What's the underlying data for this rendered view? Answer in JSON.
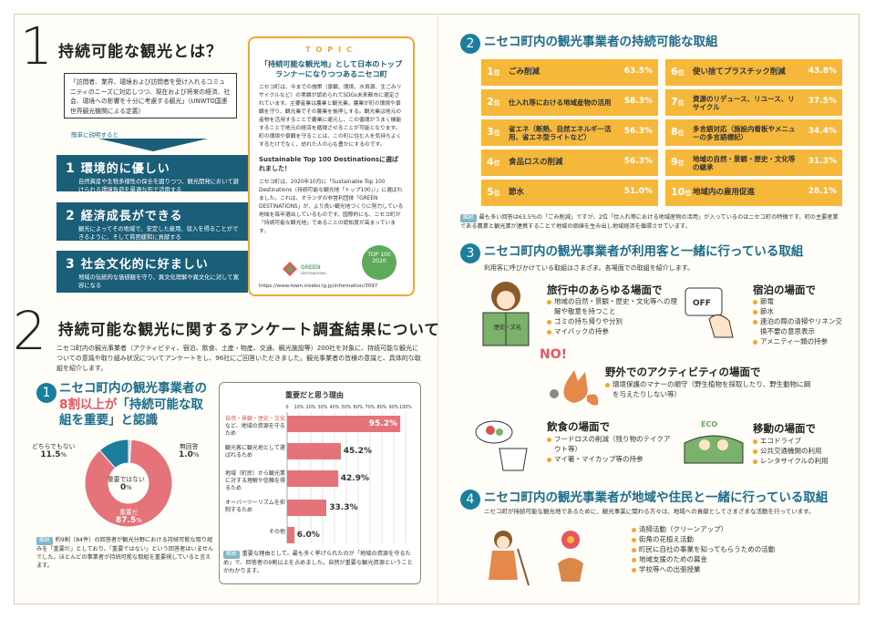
{
  "s1": {
    "num": "1",
    "title": "持続可能な観光とは？",
    "quote": "「訪問者、業界、環境および訪問者を受け入れるコミュニティのニーズに対応しつつ、現在および将来の経済、社会、環境への影響を十分に考慮する観光」（UNWTO国連世界観光機関による定義）",
    "simple": "簡単に説明すると",
    "defs": [
      {
        "n": "1",
        "t": "環境的に優しい",
        "d": "自然資産や生物多様性の保全を図りつつ、観光開発において避けられる環境負荷を最適な形で活用する"
      },
      {
        "n": "2",
        "t": "経済成長ができる",
        "d": "観光によってその地域で、安定した雇用、収入を得ることができるように、そして貧困緩和に貢献する"
      },
      {
        "n": "3",
        "t": "社会文化的に好ましい",
        "d": "地域の伝統的な価値観を守り、異文化理解や異文化に対して寛容になる"
      }
    ]
  },
  "topic": {
    "tag": "TOPIC",
    "head": "「持続可能な観光地」として日本のトップランナーになりつつあるニセコ町",
    "p1": "ニセコ町は、今までの施策（景観、環境、水資源、生ごみリサイクルなど）の実績が認められてSDGs未来都市に選定されています。主要産業は農業と観光業。農業が町の環境や景観を守り、観光業でその農業を後押しする。観光業は地元の産物を活用することで農業に還元し、この循環がうまく機能することで地元の経済を循環させることが可能となります。町の環境や景観を守ることは、この町に住む人を気持ちよくするだけでなく、訪れた人の心も豊かにするのです。",
    "sub": "Sustainable Top 100 Destinationsに選ばれました！",
    "p2": "ニセコ町は、2020年10月に「Sustainable Top 100 Destinations（持続可能な観光地「トップ100」）」に選ばれました。これは、オランダの非営利団体「GREEN DESTINATIONS」が、より良い観光地づくりに努力している地域を毎年選出しているものです。国際的にも、ニセコ町が「持続可能な観光地」であることの認知度が高まっています。",
    "logo1": "GREEN DESTINATIONS",
    "logo2": "TOP 100 2020",
    "url": "https://www.town.niseko.lg.jp/information/3097"
  },
  "s2": {
    "num": "2",
    "title": "持続可能な観光に関するアンケート調査結果について",
    "intro": "ニセコ町内の観光事業者（アクティビティ、宿泊、飲食、土産・物産、交通、観光施設等）200社を対象に、持続可能な観光についての意識や取り組み状況についてアンケートをし、96社にご回答いただきました。観光事業者の皆様の意識と、具体的な取組を紹介します。"
  },
  "q1": {
    "num": "1",
    "title_a": "ニセコ町内の観光事業者の",
    "title_b": "8割以上が",
    "title_c": "「持続可能な取組を重要」と認識",
    "chart_data": {
      "type": "pie",
      "slices": [
        {
          "label": "重要だ",
          "value": 87.5,
          "color": "#e5737a"
        },
        {
          "label": "どちらでもない",
          "value": 11.5,
          "color": "#1b7e9c"
        },
        {
          "label": "無回答",
          "value": 1.0,
          "color": "#cfcfcf"
        },
        {
          "label": "重要ではない",
          "value": 0,
          "color": "#ffffff"
        }
      ]
    },
    "lab_neutral": "どちらでもない",
    "val_neutral": "11.5",
    "lab_nr": "無回答",
    "val_nr": "1.0",
    "lab_not": "重要ではない",
    "val_not": "0",
    "lab_imp": "重要だ",
    "val_imp": "87.5",
    "pct": "%",
    "note_tag": "解説",
    "note": "約9割（84件）の回答者が観光分野における持続可能な取り組みを「重要だ」としており、「重要ではない」という回答者はいませんでした。ほとんどの事業者が持続可能な取組を重要視していると言えます。"
  },
  "reasons": {
    "title": "重要だと思う理由",
    "chart_data": {
      "type": "bar",
      "orientation": "horizontal",
      "xlim": [
        0,
        100
      ],
      "ticks": [
        "0",
        "10%",
        "20%",
        "30%",
        "40%",
        "50%",
        "60%",
        "70%",
        "80%",
        "90%",
        "100%"
      ],
      "categories": [
        "自然・景観・歴史・文化など、地域の資源を守るため",
        "観光客に観光地として選ばれるため",
        "地域（町民）から観光業に対する理解や信頼を得るため",
        "オーバーツーリズムを抑制するため",
        "その他"
      ],
      "values": [
        95.2,
        45.2,
        42.9,
        33.3,
        6.0
      ],
      "labels": [
        "95.2%",
        "45.2%",
        "42.9%",
        "33.3%",
        "6.0%"
      ]
    },
    "lab0a": "自然・景観・歴史・文化",
    "lab0b": "など、地域の資源を守るため",
    "note_tag": "解説",
    "note": "重要な理由として、最も多く挙げられたのが「地域の資源を守るため」で、回答者の9割以上を占めました。自然が重要な観光資源ということがわかります。"
  },
  "q2": {
    "num": "2",
    "title": "ニセコ町内の観光事業者の持続可能な取組",
    "ranks": [
      {
        "n": "1",
        "t": "ごみ削減",
        "p": "63.5%"
      },
      {
        "n": "2",
        "t": "仕入れ等における地域産物の活用",
        "p": "58.3%"
      },
      {
        "n": "3",
        "t": "省エネ（断熱、自然エネルギー活用、省エネ型ライトなど）",
        "p": "56.3%"
      },
      {
        "n": "4",
        "t": "食品ロスの削減",
        "p": "56.3%"
      },
      {
        "n": "5",
        "t": "節水",
        "p": "51.0%"
      },
      {
        "n": "6",
        "t": "使い捨てプラスチック削減",
        "p": "43.8%"
      },
      {
        "n": "7",
        "t": "資源のリデュース、リユース、リサイクル",
        "p": "37.5%"
      },
      {
        "n": "8",
        "t": "多言語対応（施設内看板やメニューの多言語標記）",
        "p": "34.4%"
      },
      {
        "n": "9",
        "t": "地域の自然・景観・歴史・文化等の継承",
        "p": "31.3%"
      },
      {
        "n": "10",
        "t": "地域内の雇用促進",
        "p": "28.1%"
      }
    ],
    "rank_suffix": "位",
    "note_tag": "解説",
    "note": "最も多い回答は63.5％の「ごみ削減」ですが、2位「仕入れ等における地域産物の活用」が入っているのはニセコ町の特徴です。町の主要産業である農業と観光業が連携することで地域の価値を生み出し地域経済を循環させています。"
  },
  "q3": {
    "num": "3",
    "title": "ニセコ町内の観光事業者が利用客と一緒に行っている取組",
    "intro": "利用客に呼びかけている取組はさまざま。各場面での取組を紹介します。",
    "scenes": [
      {
        "t": "旅行中のあらゆる場面で",
        "items": [
          "地域の自然・景観・歴史・文化等への理解や敬意を持つこと",
          "ゴミの持ち帰りや分別",
          "マイバックの持参"
        ]
      },
      {
        "t": "宿泊の場面で",
        "items": [
          "節電",
          "節水",
          "連泊の際の清掃やリネン交換不要の意思表示",
          "アメニティー類の持参"
        ]
      },
      {
        "t": "野外でのアクティビティの場面で",
        "items": [
          "環境保護のマナーの順守（野生植物を採取したり、野生動物に餌を与えたりしない等）"
        ]
      },
      {
        "t": "飲食の場面で",
        "items": [
          "フードロスの削減（残り物のテイクアウト等）",
          "マイ箸・マイカップ等の持参"
        ]
      },
      {
        "t": "移動の場面で",
        "items": [
          "エコドライブ",
          "公共交通機関の利用",
          "レンタサイクルの利用"
        ]
      }
    ],
    "no": "NO!",
    "off": "OFF",
    "eco": "ECO",
    "book": "歴史・文化"
  },
  "q4": {
    "num": "4",
    "title": "ニセコ町内の観光事業者が地域や住民と一緒に行っている取組",
    "intro": "ニセコ町が持続可能な観光地であるために、観光事業に関わる方々は、地域への貢献としてさまざまな活動を行っています。",
    "items": [
      "清掃活動（クリーンアップ）",
      "街角の花植え活動",
      "町民に自社の事業を知ってもらうための活動",
      "地域支援のための募金",
      "学校等への出張授業"
    ]
  },
  "colors": {
    "teal": "#1b6d8c",
    "orange": "#f5b83a",
    "pink": "#e5737a"
  }
}
